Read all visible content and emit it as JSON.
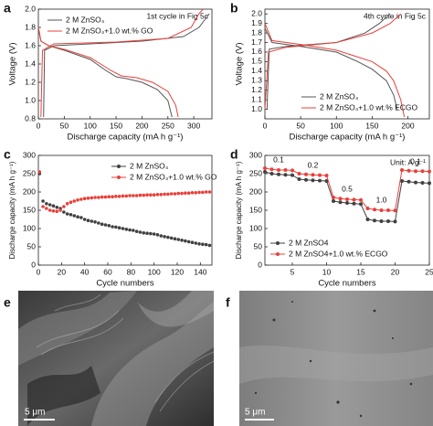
{
  "chart_data": [
    {
      "label": "a",
      "type": "line",
      "annotation": "1st cycle in Fig 5c",
      "xlabel": "Discharge capacity (mA h g⁻¹)",
      "ylabel": "Voltage (V)",
      "xlim": [
        0,
        335
      ],
      "xticks": [
        0,
        50,
        100,
        150,
        200,
        250,
        300
      ],
      "ylim": [
        0.8,
        2.0
      ],
      "yticks": [
        0.8,
        {
          "value": 1,
          "label": "1.0"
        },
        1.2,
        1.4,
        1.6,
        1.8,
        {
          "value": 2,
          "label": "2.0"
        }
      ],
      "legend": "upper left",
      "series": [
        {
          "name": "2 M ZnSO₄",
          "color": "#555555",
          "x": [
            0,
            5,
            20,
            50,
            100,
            130,
            150,
            170,
            200,
            230,
            250,
            258,
            null,
            10,
            12,
            30,
            100,
            200,
            280,
            310,
            330
          ],
          "values": [
            1.8,
            1.65,
            1.6,
            1.55,
            1.45,
            1.33,
            1.26,
            1.24,
            1.2,
            1.12,
            1.0,
            0.82,
            null,
            0.82,
            1.55,
            1.6,
            1.62,
            1.65,
            1.7,
            1.8,
            1.95
          ]
        },
        {
          "name": "2 M ZnSO₄+1.0 wt.% GO",
          "color": "#e8403a",
          "x": [
            0,
            5,
            20,
            50,
            100,
            140,
            160,
            190,
            220,
            250,
            265,
            270,
            null,
            5,
            8,
            30,
            150,
            250,
            295,
            310,
            318
          ],
          "values": [
            1.8,
            1.65,
            1.6,
            1.56,
            1.47,
            1.33,
            1.27,
            1.25,
            1.2,
            1.1,
            0.95,
            0.82,
            null,
            0.82,
            1.55,
            1.62,
            1.64,
            1.68,
            1.8,
            1.95,
            2.0
          ]
        }
      ]
    },
    {
      "label": "b",
      "type": "line",
      "annotation": "4th cycle in Fig 5c",
      "xlabel": "Discharge capacity (mA h g⁻¹)",
      "ylabel": "Voltage (V)",
      "xlim": [
        0,
        230
      ],
      "xticks": [
        0,
        50,
        100,
        150,
        200
      ],
      "ylim": [
        0.9,
        2.05
      ],
      "yticks": [
        {
          "value": 1,
          "label": "1.0"
        },
        1.1,
        1.2,
        1.3,
        1.4,
        1.5,
        1.6,
        1.7,
        1.8,
        1.9,
        {
          "value": 2,
          "label": "2.0"
        }
      ],
      "legend": "lower right",
      "series": [
        {
          "name": "2 M ZnSO₄",
          "color": "#555555",
          "x": [
            0,
            10,
            50,
            100,
            130,
            150,
            170,
            180,
            185,
            null,
            3,
            6,
            30,
            100,
            140,
            160,
            175
          ],
          "values": [
            1.85,
            1.7,
            1.66,
            1.6,
            1.5,
            1.42,
            1.3,
            1.15,
            1.0,
            null,
            1.0,
            1.63,
            1.66,
            1.7,
            1.8,
            1.9,
            2.0
          ]
        },
        {
          "name": "2 M ZnSO₄+1.0 wt.% ECGO",
          "color": "#e8403a",
          "x": [
            0,
            10,
            50,
            100,
            150,
            170,
            180,
            190,
            195,
            null,
            0,
            5,
            30,
            100,
            150,
            175,
            190
          ],
          "values": [
            1.9,
            1.72,
            1.68,
            1.62,
            1.5,
            1.4,
            1.3,
            1.1,
            0.92,
            null,
            1.0,
            1.6,
            1.65,
            1.7,
            1.8,
            1.9,
            2.0
          ]
        }
      ]
    },
    {
      "label": "c",
      "type": "scatter",
      "xlabel": "Cycle numbers",
      "ylabel": "Discharge capacity (mA h g⁻¹)",
      "xlim": [
        0,
        150
      ],
      "xticks": [
        0,
        20,
        40,
        60,
        80,
        100,
        120,
        140
      ],
      "ylim": [
        0,
        300
      ],
      "yticks": [
        0,
        50,
        100,
        150,
        200,
        250,
        300
      ],
      "legend": "upper right",
      "x": [
        1,
        4,
        7,
        10,
        13,
        16,
        19,
        22,
        25,
        28,
        31,
        34,
        37,
        40,
        43,
        46,
        49,
        52,
        55,
        58,
        61,
        64,
        67,
        70,
        73,
        76,
        79,
        82,
        85,
        88,
        91,
        94,
        97,
        100,
        103,
        106,
        109,
        112,
        115,
        118,
        121,
        124,
        127,
        130,
        133,
        136,
        139,
        142,
        145,
        148
      ],
      "series": [
        {
          "name": "2 M ZnSO₄",
          "color": "#404040",
          "values": [
            250,
            175,
            168,
            165,
            162,
            158,
            155,
            145,
            140,
            138,
            135,
            132,
            130,
            125,
            122,
            120,
            118,
            115,
            112,
            110,
            108,
            105,
            104,
            102,
            100,
            98,
            96,
            95,
            92,
            90,
            88,
            87,
            86,
            85,
            83,
            80,
            78,
            76,
            74,
            72,
            70,
            68,
            66,
            64,
            62,
            60,
            58,
            57,
            56,
            54
          ]
        },
        {
          "name": "2 M ZnSO₄+1.0 wt.% GO",
          "color": "#e8403a",
          "values": [
            255,
            160,
            155,
            150,
            148,
            147,
            150,
            160,
            168,
            172,
            175,
            178,
            180,
            182,
            183,
            184,
            185,
            185,
            186,
            186,
            187,
            187,
            188,
            188,
            189,
            189,
            190,
            190,
            190,
            191,
            191,
            192,
            192,
            192,
            193,
            193,
            194,
            194,
            195,
            195,
            196,
            196,
            197,
            197,
            198,
            198,
            199,
            199,
            200,
            200
          ]
        }
      ]
    },
    {
      "label": "d",
      "type": "line",
      "markers": true,
      "annotation": "Unit: A g⁻¹",
      "rate_labels": [
        "0.1",
        "0.2",
        "0.5",
        "1.0",
        "0.1"
      ],
      "xlabel": "Cycle numbers",
      "ylabel": "Discharge capacity (mA h g⁻¹)",
      "xlim": [
        1,
        25
      ],
      "xticks": [
        5,
        10,
        15,
        20,
        25
      ],
      "ylim": [
        0,
        300
      ],
      "yticks": [
        0,
        50,
        100,
        150,
        200,
        250,
        300
      ],
      "legend": "lower left",
      "x": [
        1,
        2,
        3,
        4,
        5,
        6,
        7,
        8,
        9,
        10,
        11,
        12,
        13,
        14,
        15,
        16,
        17,
        18,
        19,
        20,
        21,
        22,
        23,
        24,
        25
      ],
      "series": [
        {
          "name": "2 M ZnSO4",
          "color": "#404040",
          "values": [
            255,
            250,
            248,
            247,
            246,
            235,
            233,
            232,
            231,
            230,
            175,
            172,
            170,
            168,
            167,
            125,
            122,
            120,
            120,
            119,
            230,
            228,
            226,
            225,
            224
          ]
        },
        {
          "name": "2 M ZnSO4+1.0 wt.% ECGO",
          "color": "#e8403a",
          "values": [
            265,
            262,
            260,
            260,
            259,
            250,
            248,
            247,
            246,
            245,
            185,
            182,
            180,
            179,
            178,
            155,
            152,
            150,
            150,
            149,
            260,
            258,
            257,
            257,
            256
          ]
        }
      ]
    }
  ],
  "images": [
    {
      "label": "e",
      "scale_bar": "5 μm"
    },
    {
      "label": "f",
      "scale_bar": "5 μm"
    }
  ]
}
